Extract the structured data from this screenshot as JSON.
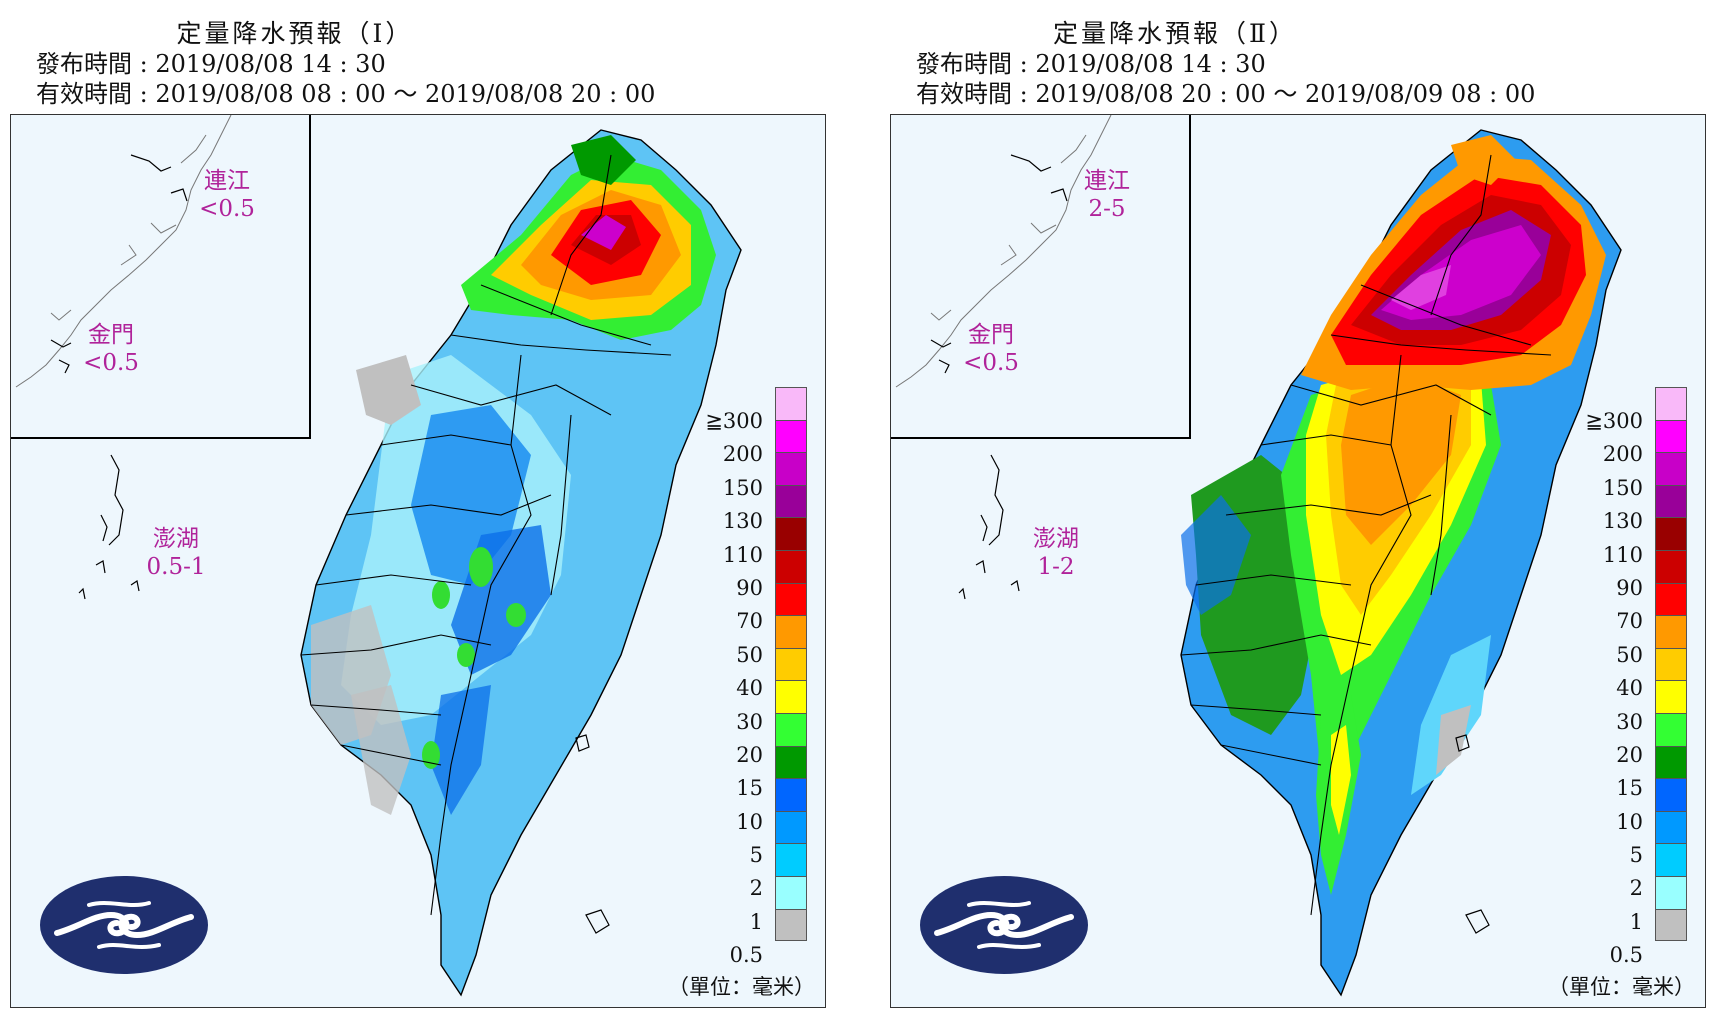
{
  "panels": [
    {
      "title": "定量降水預報（Ⅰ）",
      "issued": "發布時間 : 2019/08/08 14 : 30",
      "valid": "有效時間 : 2019/08/08 08 : 00 ～ 2019/08/08 20 : 00",
      "islands": {
        "lienchiang": {
          "name": "連江",
          "value": "<0.5"
        },
        "kinmen": {
          "name": "金門",
          "value": "<0.5"
        },
        "penghu": {
          "name": "澎湖",
          "value": "0.5-1"
        }
      },
      "unit": "（單位：毫米）"
    },
    {
      "title": "定量降水預報（Ⅱ）",
      "issued": "發布時間 : 2019/08/08 14 : 30",
      "valid": "有效時間 : 2019/08/08 20 : 00 ～ 2019/08/09 08 : 00",
      "islands": {
        "lienchiang": {
          "name": "連江",
          "value": "2-5"
        },
        "kinmen": {
          "name": "金門",
          "value": "<0.5"
        },
        "penghu": {
          "name": "澎湖",
          "value": "1-2"
        }
      },
      "unit": "（單位：毫米）"
    }
  ],
  "legend": {
    "labels": [
      "≧300",
      "200",
      "150",
      "130",
      "110",
      "90",
      "70",
      "50",
      "40",
      "30",
      "20",
      "15",
      "10",
      "5",
      "2",
      "1",
      "0.5"
    ],
    "colors": [
      "#f9b9f9",
      "#ff00ff",
      "#c800c8",
      "#990099",
      "#990000",
      "#cc0000",
      "#ff0000",
      "#ff9900",
      "#ffcc00",
      "#ffff00",
      "#33ff33",
      "#009900",
      "#0066ff",
      "#0099ff",
      "#00ccff",
      "#99ffff",
      "#c0c0c0"
    ]
  }
}
